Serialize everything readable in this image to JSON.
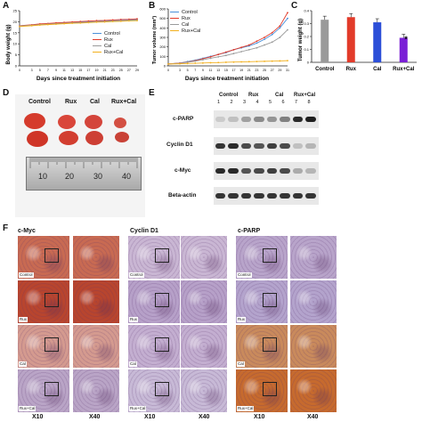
{
  "panels": {
    "A": "A",
    "B": "B",
    "C": "C",
    "D": "D",
    "E": "E",
    "F": "F"
  },
  "panelA": {
    "ylabel": "Body weight (g)",
    "xlabel": "Days since treatment initiation",
    "yticks": [
      "0",
      "5",
      "10",
      "15",
      "20",
      "25"
    ],
    "xticks": [
      "0",
      "3",
      "5",
      "7",
      "9",
      "11",
      "13",
      "15",
      "17",
      "19",
      "21",
      "23",
      "25",
      "27",
      "29"
    ]
  },
  "panelB": {
    "ylabel": "Tumor volume (mm³)",
    "xlabel": "Days since treatment initiation",
    "yticks": [
      "0",
      "100",
      "200",
      "300",
      "400",
      "500",
      "600"
    ],
    "xticks": [
      "0",
      "3",
      "5",
      "7",
      "9",
      "11",
      "13",
      "15",
      "17",
      "19",
      "21",
      "23",
      "25",
      "27",
      "29",
      "31"
    ]
  },
  "panelC": {
    "ylabel": "Tumor weight (g)",
    "yticks": [
      "0",
      "0.1",
      "0.2",
      "0.3",
      "0.4"
    ],
    "star": "*"
  },
  "legend": [
    {
      "name": "Control",
      "color": "#4a90d9"
    },
    {
      "name": "Rux",
      "color": "#e23b2a"
    },
    {
      "name": "Cal",
      "color": "#9a9a9a"
    },
    {
      "name": "Rux+Cal",
      "color": "#f2b01e"
    }
  ],
  "chart_data": [
    {
      "type": "line",
      "xlabel": "Days since treatment initiation",
      "ylabel": "Body weight (g)",
      "ylim": [
        0,
        25
      ],
      "x": [
        0,
        3,
        5,
        7,
        9,
        11,
        13,
        15,
        17,
        19,
        21,
        23,
        25,
        27,
        29
      ],
      "series": [
        {
          "name": "Control",
          "values": [
            18,
            18.5,
            18.8,
            19,
            19.2,
            19.5,
            19.6,
            19.8,
            20,
            20.1,
            20.3,
            20.5,
            20.6,
            20.8,
            21
          ]
        },
        {
          "name": "Rux",
          "values": [
            18.2,
            18.6,
            19,
            19.2,
            19.5,
            19.7,
            19.9,
            20.1,
            20.3,
            20.5,
            20.6,
            20.8,
            21,
            21.1,
            21.3
          ]
        },
        {
          "name": "Cal",
          "values": [
            18.1,
            18.4,
            18.7,
            18.9,
            19.1,
            19.3,
            19.5,
            19.6,
            19.8,
            20,
            20.1,
            20.3,
            20.4,
            20.6,
            20.7
          ]
        },
        {
          "name": "Rux+Cal",
          "values": [
            17.8,
            18.2,
            18.5,
            18.7,
            18.9,
            19.1,
            19.3,
            19.4,
            19.6,
            19.8,
            19.9,
            20.1,
            20.2,
            20.4,
            20.5
          ]
        }
      ]
    },
    {
      "type": "line",
      "xlabel": "Days since treatment initiation",
      "ylabel": "Tumor volume (mm³)",
      "ylim": [
        0,
        600
      ],
      "x": [
        0,
        3,
        5,
        7,
        9,
        11,
        13,
        15,
        17,
        19,
        21,
        23,
        25,
        27,
        29,
        31
      ],
      "series": [
        {
          "name": "Control",
          "values": [
            20,
            30,
            45,
            60,
            80,
            100,
            120,
            140,
            170,
            190,
            210,
            240,
            280,
            330,
            400,
            500
          ]
        },
        {
          "name": "Rux",
          "values": [
            20,
            30,
            40,
            55,
            75,
            95,
            120,
            145,
            170,
            195,
            220,
            260,
            300,
            350,
            420,
            560
          ]
        },
        {
          "name": "Cal",
          "values": [
            20,
            28,
            38,
            50,
            65,
            80,
            95,
            110,
            130,
            150,
            170,
            190,
            220,
            250,
            300,
            380
          ]
        },
        {
          "name": "Rux+Cal",
          "values": [
            20,
            22,
            25,
            28,
            30,
            33,
            35,
            38,
            40,
            42,
            44,
            46,
            48,
            50,
            52,
            55
          ]
        }
      ]
    },
    {
      "type": "bar",
      "ylabel": "Tumor weight (g)",
      "ylim": [
        0,
        0.4
      ],
      "categories": [
        "Control",
        "Rux",
        "Cal",
        "Rux+Cal"
      ],
      "values": [
        0.33,
        0.35,
        0.31,
        0.19
      ],
      "colors": [
        "#9a9a9a",
        "#e23b2a",
        "#2c4fd8",
        "#7a1fd6"
      ]
    }
  ],
  "panelD": {
    "groups": [
      "Control",
      "Rux",
      "Cal",
      "Rux+Cal"
    ],
    "ruler_numbers": [
      "10",
      "20",
      "30",
      "40"
    ]
  },
  "panelE": {
    "groups": [
      "Control",
      "Rux",
      "Cal",
      "Rux+Cal"
    ],
    "lanes": [
      "1",
      "2",
      "3",
      "4",
      "5",
      "6",
      "7",
      "8"
    ],
    "rows": [
      {
        "label": "c-PARP",
        "intensities": [
          0.15,
          0.2,
          0.35,
          0.45,
          0.4,
          0.5,
          0.9,
          0.95
        ]
      },
      {
        "label": "Cyclin D1",
        "intensities": [
          0.85,
          0.9,
          0.75,
          0.7,
          0.8,
          0.75,
          0.2,
          0.25
        ]
      },
      {
        "label": "c-Myc",
        "intensities": [
          0.9,
          0.9,
          0.7,
          0.75,
          0.8,
          0.75,
          0.3,
          0.25
        ]
      },
      {
        "label": "Beta-actin",
        "intensities": [
          0.85,
          0.85,
          0.85,
          0.85,
          0.85,
          0.85,
          0.85,
          0.85
        ]
      }
    ]
  },
  "panelF": {
    "columns": [
      {
        "title": "c-Myc",
        "bases": [
          "#c86a52",
          "#b8452e",
          "#d49a8f",
          "#b9a4c6"
        ]
      },
      {
        "title": "Cyclin D1",
        "bases": [
          "#c9b6d3",
          "#b6a0c8",
          "#c3aed0",
          "#c7b9d6"
        ]
      },
      {
        "title": "c-PARP",
        "bases": [
          "#b8a4ca",
          "#b3a3cc",
          "#c98a5c",
          "#c66a2e"
        ]
      }
    ],
    "row_tags": [
      "Control",
      "Rux",
      "Cal",
      "Rux+Cal"
    ],
    "mag_low": "X10",
    "mag_high": "X40"
  }
}
